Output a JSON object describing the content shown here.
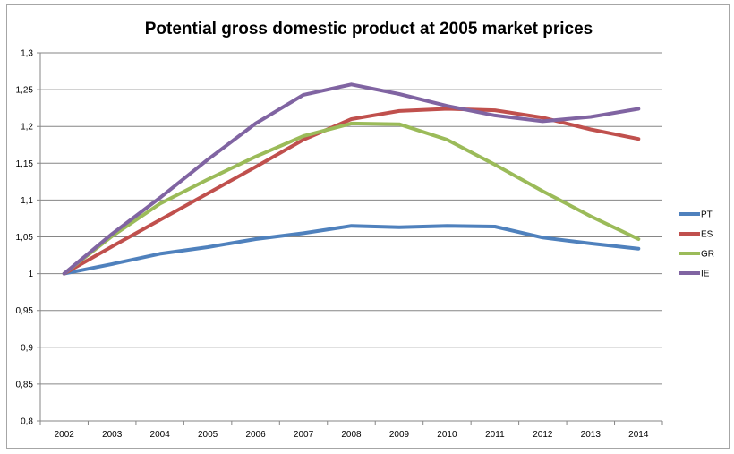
{
  "chart_data": {
    "type": "line",
    "title": "Potential gross domestic product at 2005 market prices",
    "xlabel": "",
    "ylabel": "",
    "categories": [
      "2002",
      "2003",
      "2004",
      "2005",
      "2006",
      "2007",
      "2008",
      "2009",
      "2010",
      "2011",
      "2012",
      "2013",
      "2014"
    ],
    "ylim": [
      0.8,
      1.3
    ],
    "yticks": [
      {
        "v": 0.8,
        "label": "0,8"
      },
      {
        "v": 0.85,
        "label": "0,85"
      },
      {
        "v": 0.9,
        "label": "0,9"
      },
      {
        "v": 0.95,
        "label": "0,95"
      },
      {
        "v": 1.0,
        "label": "1"
      },
      {
        "v": 1.05,
        "label": "1,05"
      },
      {
        "v": 1.1,
        "label": "1,1"
      },
      {
        "v": 1.15,
        "label": "1,15"
      },
      {
        "v": 1.2,
        "label": "1,2"
      },
      {
        "v": 1.25,
        "label": "1,25"
      },
      {
        "v": 1.3,
        "label": "1,3"
      }
    ],
    "grid": true,
    "legend_position": "right",
    "series": [
      {
        "name": "PT",
        "color": "#4f81bd",
        "values": [
          1.0,
          1.013,
          1.027,
          1.036,
          1.047,
          1.055,
          1.065,
          1.063,
          1.065,
          1.064,
          1.049,
          1.041,
          1.034
        ]
      },
      {
        "name": "ES",
        "color": "#c0504d",
        "values": [
          1.0,
          1.037,
          1.073,
          1.109,
          1.145,
          1.182,
          1.21,
          1.221,
          1.224,
          1.222,
          1.212,
          1.196,
          1.183
        ]
      },
      {
        "name": "GR",
        "color": "#9bbb59",
        "values": [
          1.0,
          1.051,
          1.095,
          1.128,
          1.159,
          1.187,
          1.204,
          1.203,
          1.182,
          1.148,
          1.112,
          1.078,
          1.047
        ]
      },
      {
        "name": "IE",
        "color": "#8064a2",
        "values": [
          1.0,
          1.054,
          1.103,
          1.155,
          1.204,
          1.243,
          1.257,
          1.244,
          1.228,
          1.215,
          1.207,
          1.213,
          1.224
        ]
      }
    ]
  }
}
